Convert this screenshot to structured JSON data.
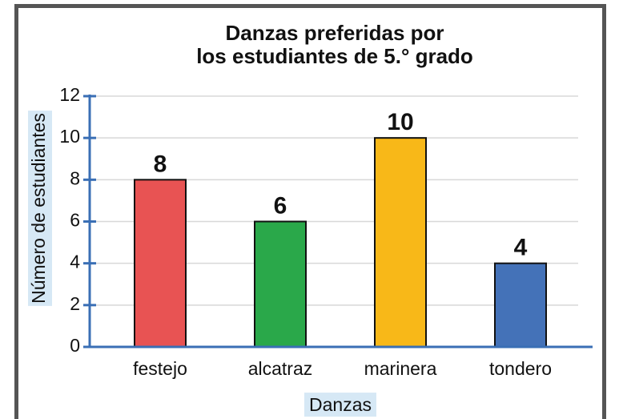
{
  "chart_data": {
    "type": "bar",
    "title": [
      "Danzas preferidas por",
      "los estudiantes de 5.° grado"
    ],
    "xlabel": "Danzas",
    "ylabel": "Número de estudiantes",
    "categories": [
      "festejo",
      "alcatraz",
      "marinera",
      "tondero"
    ],
    "values": [
      8,
      6,
      10,
      4
    ],
    "colors": [
      "#e85353",
      "#2aa84a",
      "#f8b818",
      "#4472b8"
    ],
    "ylim": [
      0,
      12
    ],
    "yticks": [
      0,
      2,
      4,
      6,
      8,
      10,
      12
    ],
    "grid": true
  }
}
